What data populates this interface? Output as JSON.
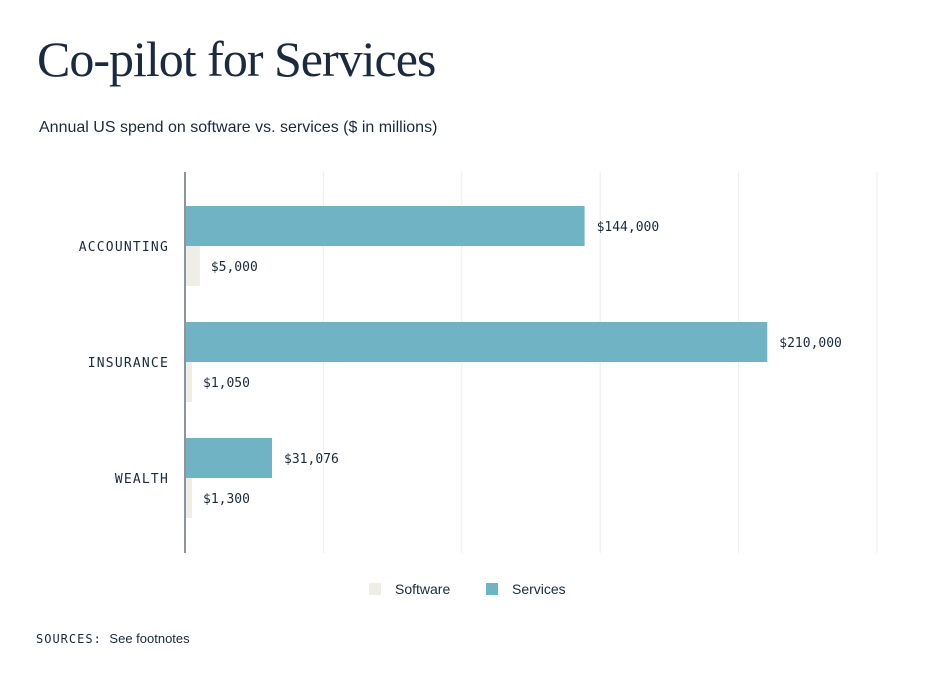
{
  "title": "Co-pilot for Services",
  "subtitle": "Annual US spend on software vs. services ($ in millions)",
  "colors": {
    "software": "#eeeee6",
    "services": "#6fb3c4",
    "text": "#1b2a3d",
    "grid": "#ececec",
    "axis": "#1b2a3d"
  },
  "legend": {
    "software": "Software",
    "services": "Services"
  },
  "sources": {
    "label": "SOURCES:",
    "text": "See footnotes"
  },
  "chart_data": {
    "type": "bar",
    "orientation": "horizontal",
    "categories": [
      "ACCOUNTING",
      "INSURANCE",
      "WEALTH"
    ],
    "series": [
      {
        "name": "Services",
        "values": [
          144000,
          210000,
          31076
        ],
        "labels": [
          "$144,000",
          "$210,000",
          "$31,076"
        ]
      },
      {
        "name": "Software",
        "values": [
          5000,
          1050,
          1300
        ],
        "labels": [
          "$5,000",
          "$1,050",
          "$1,300"
        ]
      }
    ],
    "xlim": [
      0,
      250000
    ],
    "grid": true,
    "legend_position": "bottom-center"
  }
}
